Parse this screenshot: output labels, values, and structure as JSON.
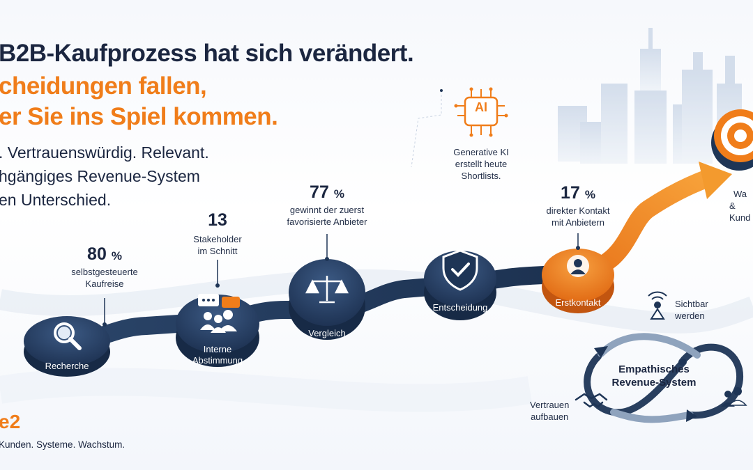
{
  "headline": {
    "line1": "B2B-Kaufprozess hat sich verändert.",
    "line2": "cheidungen fallen,",
    "line3": "er Sie ins Spiel kommen."
  },
  "subline": {
    "line1": ". Vertrauenswürdig. Relevant.",
    "line2": "hgängiges Revenue-System",
    "line3": "en Unterschied."
  },
  "steps": [
    {
      "label": "Recherche",
      "icon": "magnifier-icon"
    },
    {
      "label_1": "Interne",
      "label_2": "Abstimmung",
      "icon": "team-chat-icon"
    },
    {
      "label": "Vergleich",
      "icon": "scales-icon"
    },
    {
      "label": "Entscheidung",
      "icon": "shield-check-icon"
    },
    {
      "label": "Erstkontakt",
      "icon": "person-icon"
    }
  ],
  "stats": [
    {
      "value": "80",
      "unit": "%",
      "caption_1": "selbstgesteuerte",
      "caption_2": "Kaufreise"
    },
    {
      "value": "13",
      "caption_1": "Stakeholder",
      "caption_2": "im Schnitt"
    },
    {
      "value": "77",
      "unit": "%",
      "caption_1": "gewinnt der zuerst",
      "caption_2": "favorisierte Anbieter"
    },
    {
      "value": "17",
      "unit": "%",
      "caption_1": "direkter Kontakt",
      "caption_2": "mit Anbietern"
    }
  ],
  "ai": {
    "badge": "AI",
    "caption_1": "Generative KI",
    "caption_2": "erstellt heute",
    "caption_3": "Shortlists."
  },
  "target": {
    "caption_1": "Wa",
    "caption_2": "& Kund"
  },
  "loop": {
    "title_1": "Empathisches",
    "title_2": "Revenue-System",
    "visible_1": "Sichtbar",
    "visible_2": "werden",
    "trust_1": "Vertrauen",
    "trust_2": "aufbauen"
  },
  "brand": {
    "logo": "e2",
    "tagline": "Kunden. Systeme. Wachstum."
  },
  "colors": {
    "navy": "#1e3556",
    "orange": "#f07d1a",
    "text": "#1b2640"
  }
}
